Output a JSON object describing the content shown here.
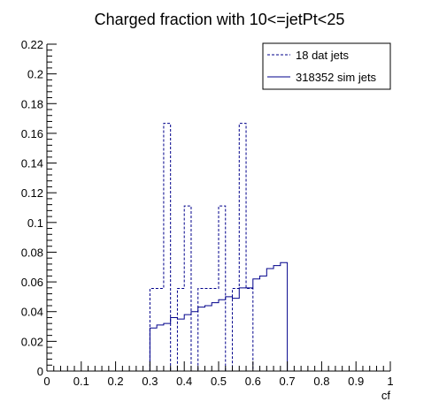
{
  "chart_data": {
    "type": "line",
    "title": "Charged fraction with 10<=jetPt<25",
    "xlabel": "cf",
    "ylabel": "",
    "xlim": [
      0,
      1
    ],
    "ylim": [
      0,
      0.22
    ],
    "x_ticks": [
      "0",
      "0.1",
      "0.2",
      "0.3",
      "0.4",
      "0.5",
      "0.6",
      "0.7",
      "0.8",
      "0.9",
      "1"
    ],
    "y_ticks": [
      "0",
      "0.02",
      "0.04",
      "0.06",
      "0.08",
      "0.1",
      "0.12",
      "0.14",
      "0.16",
      "0.18",
      "0.2",
      "0.22"
    ],
    "grid": false,
    "legend_position": "top-right",
    "bin_edges": [
      0.0,
      0.02,
      0.04,
      0.06,
      0.08,
      0.1,
      0.12,
      0.14,
      0.16,
      0.18,
      0.2,
      0.22,
      0.24,
      0.26,
      0.28,
      0.3,
      0.32,
      0.34,
      0.36,
      0.38,
      0.4,
      0.42,
      0.44,
      0.46,
      0.48,
      0.5,
      0.52,
      0.54,
      0.56,
      0.58,
      0.6,
      0.62,
      0.64,
      0.66,
      0.68,
      0.7,
      0.72,
      0.74,
      0.76,
      0.78,
      0.8,
      0.82,
      0.84,
      0.86,
      0.88,
      0.9,
      0.92,
      0.94,
      0.96,
      0.98,
      1.0
    ],
    "series": [
      {
        "name": "18 dat jets",
        "style": "dashed",
        "color": "#00008b",
        "values": [
          0,
          0,
          0,
          0,
          0,
          0,
          0,
          0,
          0,
          0,
          0,
          0,
          0,
          0,
          0,
          0.0556,
          0.0556,
          0.1667,
          0,
          0.0556,
          0.1111,
          0,
          0.0556,
          0.0556,
          0.0556,
          0.1111,
          0,
          0.0556,
          0.1667,
          0.0556,
          0,
          0,
          0,
          0,
          0,
          0,
          0,
          0,
          0,
          0,
          0,
          0,
          0,
          0,
          0,
          0,
          0,
          0,
          0,
          0
        ]
      },
      {
        "name": "318352 sim jets",
        "style": "solid",
        "color": "#00008b",
        "values": [
          0,
          0,
          0,
          0,
          0,
          0,
          0,
          0,
          0,
          0,
          0,
          0,
          0,
          0,
          0,
          0.029,
          0.031,
          0.032,
          0.036,
          0.035,
          0.038,
          0.04,
          0.043,
          0.044,
          0.046,
          0.048,
          0.05,
          0.049,
          0.056,
          0.056,
          0.062,
          0.064,
          0.069,
          0.071,
          0.073,
          0,
          0,
          0,
          0,
          0,
          0,
          0,
          0,
          0,
          0,
          0,
          0,
          0,
          0,
          0
        ]
      }
    ]
  }
}
